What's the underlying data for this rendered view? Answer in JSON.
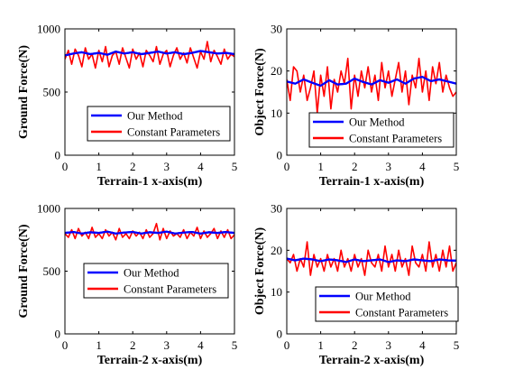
{
  "chart_data": [
    {
      "type": "line",
      "xlabel": "Terrain-1 x-axis(m)",
      "ylabel": "Ground  Force(N)",
      "xlim": [
        0,
        5
      ],
      "ylim": [
        0,
        1000
      ],
      "xticks": [
        0,
        1,
        2,
        3,
        4,
        5
      ],
      "yticks": [
        0,
        500,
        1000
      ],
      "legend_position": "lower-center",
      "series": [
        {
          "name": "Our Method",
          "color": "#0000ff",
          "x": [
            0,
            0.25,
            0.5,
            0.75,
            1,
            1.25,
            1.5,
            1.75,
            2,
            2.25,
            2.5,
            2.75,
            3,
            3.25,
            3.5,
            3.75,
            4,
            4.25,
            4.5,
            4.75,
            5
          ],
          "values": [
            790,
            805,
            815,
            800,
            810,
            795,
            820,
            805,
            815,
            800,
            810,
            820,
            805,
            815,
            800,
            810,
            825,
            815,
            805,
            810,
            800
          ]
        },
        {
          "name": "Constant Parameters",
          "color": "#ff0000",
          "x": [
            0,
            0.1,
            0.2,
            0.3,
            0.4,
            0.5,
            0.6,
            0.7,
            0.8,
            0.9,
            1,
            1.1,
            1.2,
            1.3,
            1.4,
            1.5,
            1.6,
            1.7,
            1.8,
            1.9,
            2,
            2.1,
            2.2,
            2.3,
            2.4,
            2.5,
            2.6,
            2.7,
            2.8,
            2.9,
            3,
            3.1,
            3.2,
            3.3,
            3.4,
            3.5,
            3.6,
            3.7,
            3.8,
            3.9,
            4,
            4.1,
            4.2,
            4.3,
            4.4,
            4.5,
            4.6,
            4.7,
            4.8,
            4.9,
            5
          ],
          "values": [
            760,
            830,
            720,
            840,
            790,
            700,
            850,
            760,
            800,
            690,
            830,
            740,
            860,
            700,
            790,
            820,
            720,
            850,
            770,
            690,
            840,
            760,
            810,
            700,
            830,
            790,
            740,
            860,
            720,
            800,
            830,
            700,
            790,
            850,
            760,
            810,
            730,
            850,
            770,
            690,
            820,
            760,
            900,
            740,
            830,
            780,
            720,
            840,
            760,
            800,
            780
          ]
        }
      ]
    },
    {
      "type": "line",
      "xlabel": "Terrain-1 x-axis(m)",
      "ylabel": "Object  Force(N)",
      "xlim": [
        0,
        5
      ],
      "ylim": [
        0,
        30
      ],
      "xticks": [
        0,
        1,
        2,
        3,
        4,
        5
      ],
      "yticks": [
        0,
        10,
        20,
        30
      ],
      "legend_position": "lower-right",
      "series": [
        {
          "name": "Our Method",
          "color": "#0000ff",
          "x": [
            0,
            0.25,
            0.5,
            0.75,
            1,
            1.25,
            1.5,
            1.75,
            2,
            2.25,
            2.5,
            2.75,
            3,
            3.25,
            3.5,
            3.75,
            4,
            4.25,
            4.5,
            4.75,
            5
          ],
          "values": [
            17.5,
            17.0,
            18.0,
            17.2,
            16.5,
            17.8,
            16.8,
            17.0,
            18.2,
            17.4,
            16.8,
            17.8,
            17.2,
            18.0,
            17.0,
            18.2,
            18.6,
            17.6,
            18.0,
            17.5,
            17.0
          ]
        },
        {
          "name": "Constant Parameters",
          "color": "#ff0000",
          "x": [
            0,
            0.1,
            0.2,
            0.3,
            0.4,
            0.5,
            0.6,
            0.7,
            0.8,
            0.9,
            1,
            1.1,
            1.2,
            1.3,
            1.4,
            1.5,
            1.6,
            1.7,
            1.8,
            1.9,
            2,
            2.1,
            2.2,
            2.3,
            2.4,
            2.5,
            2.6,
            2.7,
            2.8,
            2.9,
            3,
            3.1,
            3.2,
            3.3,
            3.4,
            3.5,
            3.6,
            3.7,
            3.8,
            3.9,
            4,
            4.1,
            4.2,
            4.3,
            4.4,
            4.5,
            4.6,
            4.7,
            4.8,
            4.9,
            5
          ],
          "values": [
            18,
            13,
            21,
            20,
            15,
            19,
            13,
            16,
            20,
            10,
            19,
            14,
            21,
            11,
            18,
            15,
            20,
            17,
            23,
            11,
            19,
            14,
            20,
            16,
            21,
            15,
            19,
            13,
            22,
            16,
            20,
            14,
            18,
            22,
            15,
            20,
            12,
            19,
            16,
            23,
            15,
            20,
            13,
            21,
            17,
            22,
            15,
            19,
            16,
            14,
            15
          ]
        }
      ]
    },
    {
      "type": "line",
      "xlabel": "Terrain-2 x-axis(m)",
      "ylabel": "Ground  Force(N)",
      "xlim": [
        0,
        5
      ],
      "ylim": [
        0,
        1000
      ],
      "xticks": [
        0,
        1,
        2,
        3,
        4,
        5
      ],
      "yticks": [
        0,
        500,
        1000
      ],
      "legend_position": "lower-center",
      "series": [
        {
          "name": "Our Method",
          "color": "#0000ff",
          "x": [
            0,
            0.25,
            0.5,
            0.75,
            1,
            1.25,
            1.5,
            1.75,
            2,
            2.25,
            2.5,
            2.75,
            3,
            3.25,
            3.5,
            3.75,
            4,
            4.25,
            4.5,
            4.75,
            5
          ],
          "values": [
            805,
            812,
            800,
            810,
            805,
            815,
            800,
            808,
            812,
            800,
            810,
            805,
            815,
            800,
            808,
            812,
            800,
            810,
            805,
            812,
            805
          ]
        },
        {
          "name": "Constant Parameters",
          "color": "#ff0000",
          "x": [
            0,
            0.1,
            0.2,
            0.3,
            0.4,
            0.5,
            0.6,
            0.7,
            0.8,
            0.9,
            1,
            1.1,
            1.2,
            1.3,
            1.4,
            1.5,
            1.6,
            1.7,
            1.8,
            1.9,
            2,
            2.1,
            2.2,
            2.3,
            2.4,
            2.5,
            2.6,
            2.7,
            2.8,
            2.9,
            3,
            3.1,
            3.2,
            3.3,
            3.4,
            3.5,
            3.6,
            3.7,
            3.8,
            3.9,
            4,
            4.1,
            4.2,
            4.3,
            4.4,
            4.5,
            4.6,
            4.7,
            4.8,
            4.9,
            5
          ],
          "values": [
            800,
            770,
            830,
            760,
            840,
            780,
            810,
            760,
            850,
            770,
            800,
            760,
            830,
            780,
            810,
            750,
            840,
            770,
            800,
            760,
            820,
            780,
            810,
            760,
            830,
            770,
            800,
            880,
            750,
            840,
            760,
            820,
            780,
            800,
            770,
            830,
            760,
            810,
            780,
            850,
            760,
            820,
            770,
            800,
            840,
            760,
            820,
            770,
            830,
            760,
            790
          ]
        }
      ]
    },
    {
      "type": "line",
      "xlabel": "Terrain-2 x-axis(m)",
      "ylabel": "Object  Force(N)",
      "xlim": [
        0,
        5
      ],
      "ylim": [
        0,
        30
      ],
      "xticks": [
        0,
        1,
        2,
        3,
        4,
        5
      ],
      "yticks": [
        0,
        10,
        20,
        30
      ],
      "legend_position": "lower-right",
      "series": [
        {
          "name": "Our Method",
          "color": "#0000ff",
          "x": [
            0,
            0.25,
            0.5,
            0.75,
            1,
            1.25,
            1.5,
            1.75,
            2,
            2.25,
            2.5,
            2.75,
            3,
            3.25,
            3.5,
            3.75,
            4,
            4.25,
            4.5,
            4.75,
            5
          ],
          "values": [
            18.0,
            17.6,
            18.0,
            17.8,
            17.4,
            17.8,
            17.6,
            17.2,
            17.8,
            17.4,
            17.6,
            17.8,
            17.2,
            17.6,
            17.4,
            17.8,
            17.6,
            17.4,
            17.8,
            17.6,
            17.5
          ]
        },
        {
          "name": "Constant Parameters",
          "color": "#ff0000",
          "x": [
            0,
            0.1,
            0.2,
            0.3,
            0.4,
            0.5,
            0.6,
            0.7,
            0.8,
            0.9,
            1,
            1.1,
            1.2,
            1.3,
            1.4,
            1.5,
            1.6,
            1.7,
            1.8,
            1.9,
            2,
            2.1,
            2.2,
            2.3,
            2.4,
            2.5,
            2.6,
            2.7,
            2.8,
            2.9,
            3,
            3.1,
            3.2,
            3.3,
            3.4,
            3.5,
            3.6,
            3.7,
            3.8,
            3.9,
            4,
            4.1,
            4.2,
            4.3,
            4.4,
            4.5,
            4.6,
            4.7,
            4.8,
            4.9,
            5
          ],
          "values": [
            18,
            17,
            19,
            15,
            18,
            16,
            22,
            14,
            19,
            16,
            18,
            15,
            19,
            16,
            18,
            15,
            20,
            16,
            18,
            15,
            19,
            16,
            18,
            14,
            20,
            17,
            16,
            19,
            15,
            21,
            16,
            19,
            15,
            20,
            16,
            18,
            14,
            21,
            17,
            16,
            19,
            15,
            22,
            16,
            19,
            15,
            20,
            16,
            21,
            15,
            17
          ]
        }
      ]
    }
  ]
}
